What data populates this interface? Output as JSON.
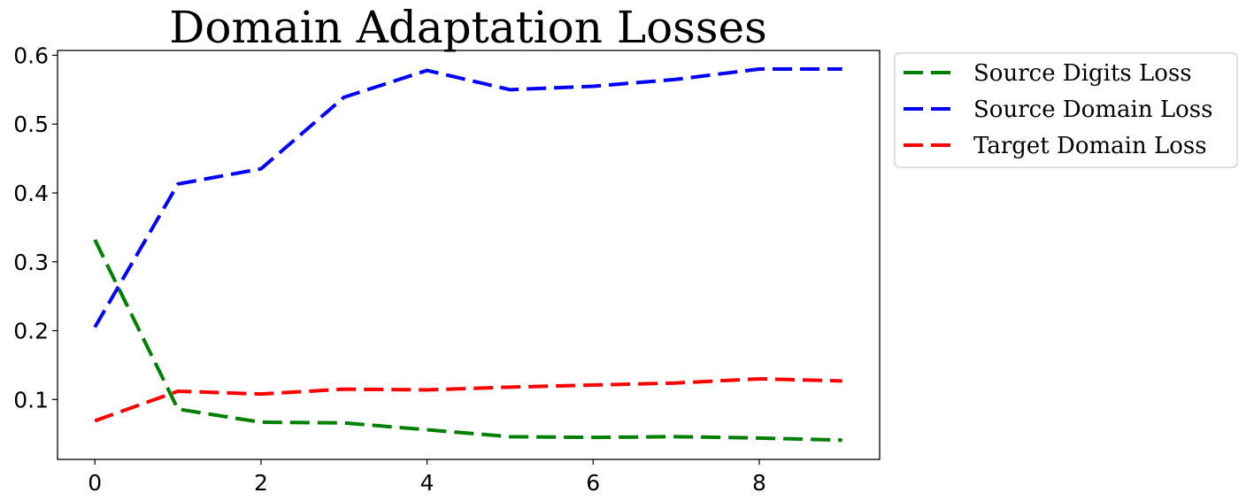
{
  "chart_data": {
    "type": "line",
    "title": "Domain Adaptation Losses",
    "xlabel": "",
    "ylabel": "",
    "x": [
      0,
      1,
      2,
      3,
      4,
      5,
      6,
      7,
      8,
      9
    ],
    "xlim": [
      -0.45,
      9.45
    ],
    "ylim": [
      0.013,
      0.607
    ],
    "xticks": [
      0,
      2,
      4,
      6,
      8
    ],
    "yticks": [
      0.1,
      0.2,
      0.3,
      0.4,
      0.5,
      0.6
    ],
    "grid": false,
    "legend_position": "outside-top-right",
    "series": [
      {
        "name": "Source Digits Loss",
        "color": "#008000",
        "style": "dashed",
        "values": [
          0.332,
          0.086,
          0.067,
          0.066,
          0.056,
          0.046,
          0.045,
          0.046,
          0.044,
          0.041
        ]
      },
      {
        "name": "Source Domain Loss",
        "color": "#0000ff",
        "style": "dashed",
        "values": [
          0.205,
          0.413,
          0.435,
          0.539,
          0.578,
          0.55,
          0.555,
          0.565,
          0.58,
          0.58
        ]
      },
      {
        "name": "Target Domain Loss",
        "color": "#ff0000",
        "style": "dashed",
        "values": [
          0.069,
          0.112,
          0.108,
          0.115,
          0.114,
          0.118,
          0.121,
          0.124,
          0.13,
          0.127
        ]
      }
    ]
  }
}
